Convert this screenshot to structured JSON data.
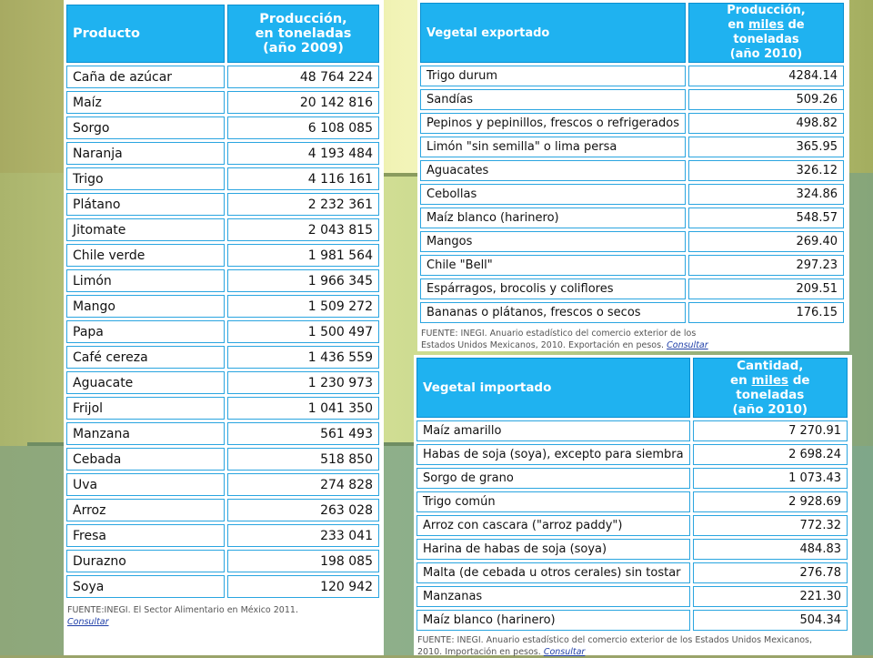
{
  "table_production": {
    "header_product": "Producto",
    "header_value_line1": "Producción,",
    "header_value_line2": "en toneladas",
    "header_value_line3": "(año 2009)",
    "rows": [
      {
        "name": "Caña de azúcar",
        "value": "48 764 224"
      },
      {
        "name": "Maíz",
        "value": "20 142 816"
      },
      {
        "name": "Sorgo",
        "value": "6 108 085"
      },
      {
        "name": "Naranja",
        "value": "4 193 484"
      },
      {
        "name": "Trigo",
        "value": "4 116 161"
      },
      {
        "name": "Plátano",
        "value": "2 232 361"
      },
      {
        "name": "Jitomate",
        "value": "2 043 815"
      },
      {
        "name": "Chile verde",
        "value": "1 981 564"
      },
      {
        "name": "Limón",
        "value": "1 966 345"
      },
      {
        "name": "Mango",
        "value": "1 509 272"
      },
      {
        "name": "Papa",
        "value": "1 500 497"
      },
      {
        "name": "Café cereza",
        "value": "1 436 559"
      },
      {
        "name": "Aguacate",
        "value": "1 230 973"
      },
      {
        "name": "Frijol",
        "value": "1 041 350"
      },
      {
        "name": "Manzana",
        "value": "561 493"
      },
      {
        "name": "Cebada",
        "value": "518 850"
      },
      {
        "name": "Uva",
        "value": "274 828"
      },
      {
        "name": "Arroz",
        "value": "263 028"
      },
      {
        "name": "Fresa",
        "value": "233 041"
      },
      {
        "name": "Durazno",
        "value": "198 085"
      },
      {
        "name": "Soya",
        "value": "120 942"
      }
    ],
    "source": "FUENTE:INEGI. El Sector Alimentario en México 2011.",
    "link": "Consultar"
  },
  "table_export": {
    "header_product": "Vegetal exportado",
    "header_value_line1": "Producción,",
    "header_value_line2_pre": "en ",
    "header_value_line2_u": "miles",
    "header_value_line2_post": " de toneladas",
    "header_value_line3": "(año 2010)",
    "rows": [
      {
        "name": "Trigo durum",
        "value": "4284.14"
      },
      {
        "name": "Sandías",
        "value": "509.26"
      },
      {
        "name": "Pepinos y pepinillos, frescos o refrigerados",
        "value": "498.82"
      },
      {
        "name": "Limón \"sin semilla\" o lima persa",
        "value": "365.95"
      },
      {
        "name": "Aguacates",
        "value": "326.12"
      },
      {
        "name": "Cebollas",
        "value": "324.86"
      },
      {
        "name": "Maíz blanco (harinero)",
        "value": "548.57"
      },
      {
        "name": "Mangos",
        "value": "269.40"
      },
      {
        "name": "Chile \"Bell\"",
        "value": "297.23"
      },
      {
        "name": "Espárragos, brocolis y coliflores",
        "value": "209.51"
      },
      {
        "name": "Bananas o plátanos, frescos o secos",
        "value": "176.15"
      }
    ],
    "source_line1": "FUENTE: INEGI. Anuario estadístico del comercio exterior de los",
    "source_line2": "Estados Unidos Mexicanos, 2010. Exportación en pesos.",
    "link": "Consultar"
  },
  "table_import": {
    "header_product": "Vegetal importado",
    "header_value_line1": "Cantidad,",
    "header_value_line2_pre": "en ",
    "header_value_line2_u": "miles",
    "header_value_line2_post": " de toneladas",
    "header_value_line3": "(año 2010)",
    "rows": [
      {
        "name": "Maíz amarillo",
        "value": "7 270.91"
      },
      {
        "name": "Habas de soja (soya), excepto para siembra",
        "value": "2 698.24"
      },
      {
        "name": "Sorgo de grano",
        "value": "1 073.43"
      },
      {
        "name": "Trigo común",
        "value": "2 928.69"
      },
      {
        "name": "Arroz con cascara (\"arroz paddy\")",
        "value": "772.32"
      },
      {
        "name": "Harina de habas de soja (soya)",
        "value": "484.83"
      },
      {
        "name": "Malta (de cebada u otros cerales) sin tostar",
        "value": "276.78"
      },
      {
        "name": "Manzanas",
        "value": "221.30"
      },
      {
        "name": "Maíz blanco (harinero)",
        "value": "504.34"
      }
    ],
    "source_line1": "FUENTE: INEGI. Anuario estadístico del comercio exterior de los Estados Unidos Mexicanos,",
    "source_line2": "2010. Importación en pesos.",
    "link": "Consultar"
  }
}
